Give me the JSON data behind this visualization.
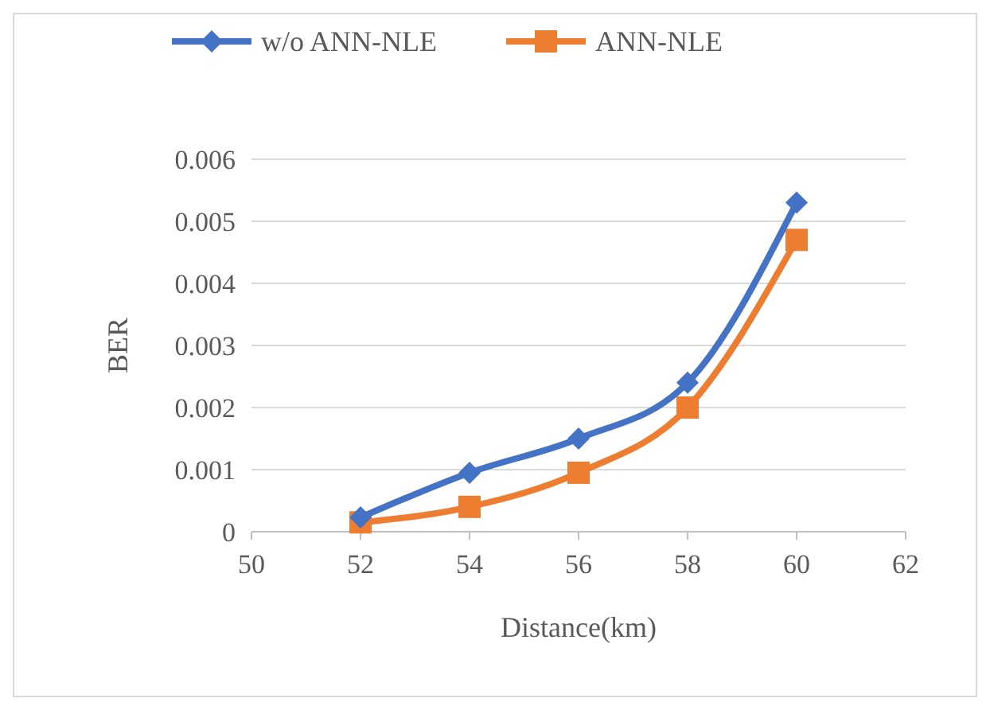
{
  "chart_data": {
    "type": "line",
    "xlabel": "Distance(km)",
    "ylabel": "BER",
    "x": [
      52,
      54,
      56,
      58,
      60
    ],
    "series": [
      {
        "name": "w/o ANN-NLE",
        "color": "#4472c4",
        "marker": "diamond",
        "values": [
          0.00023,
          0.00095,
          0.0015,
          0.0024,
          0.0053
        ]
      },
      {
        "name": "ANN-NLE",
        "color": "#ed7d31",
        "marker": "square",
        "values": [
          0.00015,
          0.0004,
          0.00095,
          0.002,
          0.0047
        ]
      }
    ],
    "xlim": [
      50,
      62
    ],
    "xticks": [
      50,
      52,
      54,
      56,
      58,
      60,
      62
    ],
    "ylim": [
      0,
      0.006
    ],
    "yticks": [
      0,
      0.001,
      0.002,
      0.003,
      0.004,
      0.005,
      0.006
    ],
    "grid": "y",
    "legend": "top",
    "line_style": "solid"
  }
}
